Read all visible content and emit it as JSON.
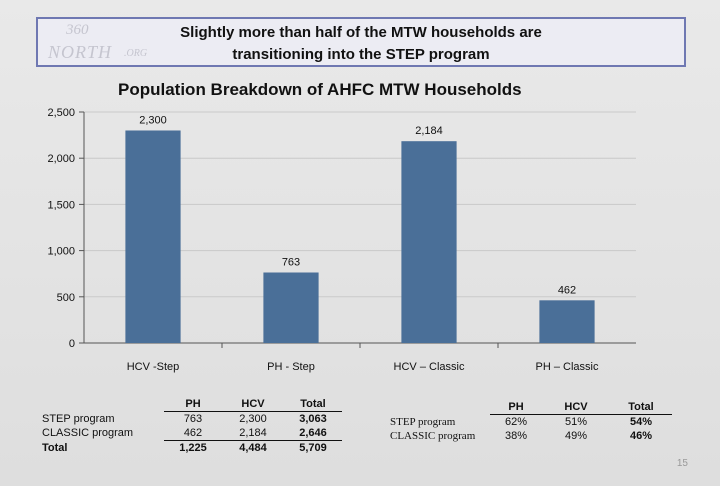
{
  "header": {
    "line1": "Slightly more than half of the MTW households are",
    "line2": "transitioning into the STEP program"
  },
  "logo": {
    "number": "360",
    "word": "NORTH",
    "org": ".ORG"
  },
  "chart_data": {
    "type": "bar",
    "title": "Population Breakdown of AHFC MTW Households",
    "categories": [
      "HCV -Step",
      "PH - Step",
      "HCV – Classic",
      "PH – Classic"
    ],
    "values": [
      2300,
      763,
      2184,
      462
    ],
    "value_labels": [
      "2,300",
      "763",
      "2,184",
      "462"
    ],
    "ylim": [
      0,
      2500
    ],
    "yticks": [
      0,
      500,
      1000,
      1500,
      2000,
      2500
    ],
    "ytick_labels": [
      "0",
      "500",
      "1,000",
      "1,500",
      "2,000",
      "2,500"
    ],
    "grid": true,
    "bar_color": "#4a6f98",
    "legend": "none"
  },
  "counts_table": {
    "headers": [
      "PH",
      "HCV",
      "Total"
    ],
    "rows": [
      {
        "label": "STEP program",
        "values": [
          "763",
          "2,300",
          "3,063"
        ]
      },
      {
        "label": "CLASSIC program",
        "values": [
          "462",
          "2,184",
          "2,646"
        ]
      }
    ],
    "total": {
      "label": "Total",
      "values": [
        "1,225",
        "4,484",
        "5,709"
      ]
    }
  },
  "percent_table": {
    "headers": [
      "PH",
      "HCV",
      "Total"
    ],
    "rows": [
      {
        "label": "STEP program",
        "values": [
          "62%",
          "51%",
          "54%"
        ]
      },
      {
        "label": "CLASSIC program",
        "values": [
          "38%",
          "49%",
          "46%"
        ]
      }
    ]
  },
  "page_number": "15"
}
